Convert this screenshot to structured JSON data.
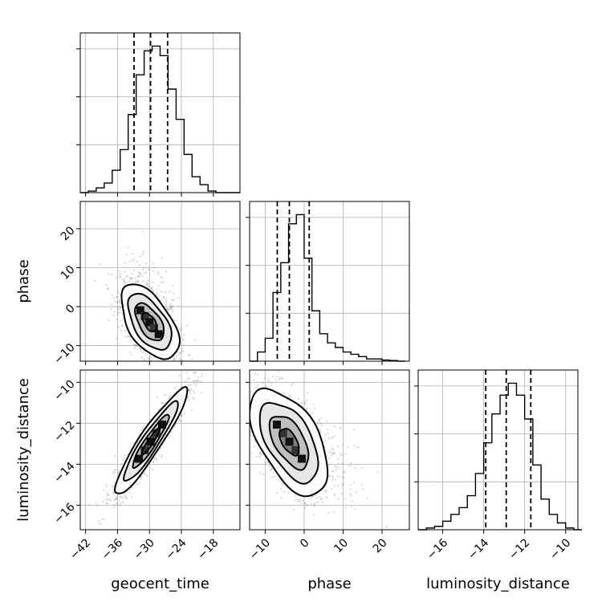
{
  "chart_data": {
    "type": "corner",
    "parameters": [
      "geocent_time",
      "phase",
      "luminosity_distance"
    ],
    "grid": true,
    "ranges": {
      "geocent_time": [
        -43,
        -13
      ],
      "phase": [
        -14,
        27
      ],
      "luminosity_distance": [
        -17.2,
        -9.4
      ]
    },
    "ticks": {
      "geocent_time": [
        -42,
        -36,
        -30,
        -24,
        -18
      ],
      "phase": [
        -10,
        0,
        10,
        20
      ],
      "luminosity_distance": [
        -16,
        -14,
        -12,
        -10
      ]
    },
    "tick_labels": {
      "geocent_time": [
        "−42",
        "−36",
        "−30",
        "−24",
        "−18"
      ],
      "phase": [
        "−10",
        "0",
        "10",
        "20"
      ],
      "phase_bottom": [
        "−10",
        "0",
        "10",
        "20"
      ],
      "luminosity_distance": [
        "−16",
        "−14",
        "−12",
        "−10"
      ]
    },
    "quantiles": {
      "geocent_time": [
        -32.9,
        -29.8,
        -26.6
      ],
      "phase": [
        -6.9,
        -3.8,
        1.3
      ],
      "luminosity_distance": [
        -13.9,
        -12.9,
        -11.7
      ]
    },
    "histograms": {
      "geocent_time": {
        "edges": [
          -43,
          -41.5,
          -40,
          -38.5,
          -37,
          -35.5,
          -34,
          -32.5,
          -31,
          -29.5,
          -28,
          -26.5,
          -25,
          -23.5,
          -22,
          -20.5,
          -19,
          -17.5,
          -16,
          -14.5,
          -13
        ],
        "counts": [
          0,
          1,
          3,
          6,
          14,
          27,
          49,
          74,
          89,
          92,
          86,
          65,
          46,
          24,
          10,
          5,
          1,
          0,
          0,
          0
        ]
      },
      "phase": {
        "edges": [
          -14,
          -12,
          -10,
          -8,
          -6,
          -4,
          -2,
          0,
          2,
          4,
          6,
          8,
          10,
          12,
          14,
          16,
          18,
          20,
          22,
          24,
          26
        ],
        "counts": [
          0,
          4,
          10,
          30,
          43,
          60,
          64,
          45,
          22,
          12,
          8,
          6,
          4,
          3,
          2,
          1,
          1,
          0.5,
          0.3,
          0
        ]
      },
      "luminosity_distance": {
        "edges": [
          -17.2,
          -16.8,
          -16.4,
          -16.0,
          -15.6,
          -15.2,
          -14.8,
          -14.4,
          -14.0,
          -13.6,
          -13.2,
          -12.8,
          -12.4,
          -12.0,
          -11.6,
          -11.2,
          -10.8,
          -10.4,
          -10.0,
          -9.6,
          -9.2
        ],
        "counts": [
          0,
          1,
          2,
          5,
          9,
          13,
          20,
          33,
          51,
          68,
          79,
          86,
          79,
          65,
          38,
          18,
          9,
          4,
          1,
          0
        ]
      }
    },
    "correlations": {
      "geocent_time|phase": {
        "center": [
          -30,
          -4
        ],
        "sd": [
          2.7,
          4.8
        ],
        "rho": -0.55
      },
      "geocent_time|luminosity_distance": {
        "center": [
          -29.8,
          -12.9
        ],
        "sd": [
          3.4,
          1.3
        ],
        "rho": 0.93
      },
      "phase|luminosity_distance": {
        "center": [
          -3.8,
          -12.9
        ],
        "sd": [
          5.0,
          1.3
        ],
        "rho": -0.55
      }
    },
    "contour_levels_sigma": [
      0.5,
      1.0,
      1.5,
      2.0
    ]
  }
}
